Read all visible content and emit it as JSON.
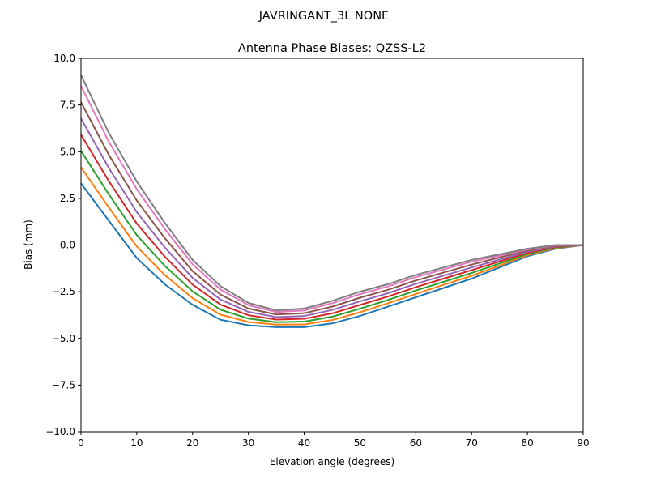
{
  "suptitle": "JAVRINGANT_3L   NONE",
  "chart_data": {
    "type": "line",
    "title": "Antenna Phase Biases: QZSS-L2",
    "xlabel": "Elevation angle (degrees)",
    "ylabel": "Bias (mm)",
    "xlim": [
      0,
      90
    ],
    "ylim": [
      -10,
      10
    ],
    "grid": false,
    "x_ticks": [
      0,
      10,
      20,
      30,
      40,
      50,
      60,
      70,
      80,
      90
    ],
    "x_tick_labels": [
      "0",
      "10",
      "20",
      "30",
      "40",
      "50",
      "60",
      "70",
      "80",
      "90"
    ],
    "y_ticks": [
      10,
      7.5,
      5,
      2.5,
      0,
      -2.5,
      -5,
      -7.5,
      -10
    ],
    "y_tick_labels": [
      "10.0",
      "7.5",
      "5.0",
      "2.5",
      "0.0",
      "−2.5",
      "−5.0",
      "−7.5",
      "−10.0"
    ],
    "x": [
      0,
      5,
      10,
      15,
      20,
      25,
      30,
      35,
      40,
      45,
      50,
      55,
      60,
      65,
      70,
      75,
      80,
      85,
      90
    ],
    "colors": [
      "#1f77b4",
      "#ff7f0e",
      "#2ca02c",
      "#d62728",
      "#9467bd",
      "#8c564b",
      "#e377c2",
      "#7f7f7f",
      "#bcbd22",
      "#17becf"
    ],
    "series": [
      {
        "values": [
          3.3,
          1.3,
          -0.7,
          -2.1,
          -3.2,
          -4.0,
          -4.3,
          -4.4,
          -4.4,
          -4.2,
          -3.8,
          -3.3,
          -2.8,
          -2.3,
          -1.8,
          -1.2,
          -0.6,
          -0.2,
          0
        ]
      },
      {
        "values": [
          4.17,
          2.01,
          -0.08,
          -1.6,
          -2.84,
          -3.73,
          -4.12,
          -4.26,
          -4.25,
          -4.02,
          -3.6,
          -3.12,
          -2.62,
          -2.13,
          -1.65,
          -1.1,
          -0.54,
          -0.17,
          0
        ]
      },
      {
        "values": [
          5.04,
          2.71,
          0.53,
          -1.11,
          -2.48,
          -3.46,
          -3.94,
          -4.13,
          -4.1,
          -3.84,
          -3.41,
          -2.94,
          -2.44,
          -1.97,
          -1.5,
          -0.99,
          -0.48,
          -0.14,
          0
        ]
      },
      {
        "values": [
          5.91,
          3.42,
          1.15,
          -0.61,
          -2.12,
          -3.19,
          -3.76,
          -3.99,
          -3.95,
          -3.66,
          -3.21,
          -2.76,
          -2.26,
          -1.8,
          -1.35,
          -0.88,
          -0.42,
          -0.11,
          0
        ]
      },
      {
        "values": [
          6.78,
          4.12,
          1.76,
          -0.12,
          -1.76,
          -2.92,
          -3.58,
          -3.86,
          -3.8,
          -3.48,
          -3.02,
          -2.58,
          -2.08,
          -1.64,
          -1.2,
          -0.78,
          -0.36,
          -0.08,
          0
        ]
      },
      {
        "values": [
          7.65,
          4.83,
          2.38,
          0.38,
          -1.4,
          -2.65,
          -3.4,
          -3.72,
          -3.65,
          -3.3,
          -2.82,
          -2.4,
          -1.9,
          -1.47,
          -1.05,
          -0.67,
          -0.3,
          -0.05,
          0
        ]
      },
      {
        "values": [
          8.52,
          5.53,
          2.99,
          0.87,
          -1.04,
          -2.38,
          -3.22,
          -3.59,
          -3.5,
          -3.12,
          -2.63,
          -2.22,
          -1.72,
          -1.31,
          -0.9,
          -0.57,
          -0.24,
          -0.02,
          0
        ]
      },
      {
        "values": [
          9.1,
          6.0,
          3.4,
          1.2,
          -0.8,
          -2.2,
          -3.1,
          -3.5,
          -3.4,
          -3.0,
          -2.5,
          -2.1,
          -1.6,
          -1.2,
          -0.8,
          -0.5,
          -0.2,
          0,
          0
        ]
      }
    ]
  }
}
